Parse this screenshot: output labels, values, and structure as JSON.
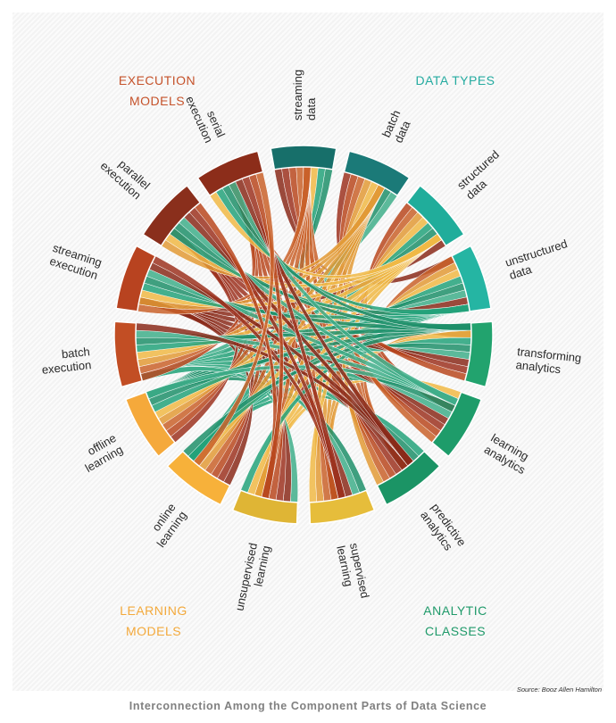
{
  "groups": {
    "execution": {
      "line1": "EXECUTION",
      "line2": "MODELS",
      "color": "#c5522a"
    },
    "data_types": {
      "line1": "DATA TYPES",
      "line2": "",
      "color": "#24aba0"
    },
    "learning": {
      "line1": "LEARNING",
      "line2": "MODELS",
      "color": "#f3a93b"
    },
    "analytic": {
      "line1": "ANALYTIC",
      "line2": "CLASSES",
      "color": "#1f9a6a"
    }
  },
  "segments": [
    {
      "id": "streaming-data",
      "lines": [
        "streaming",
        "data"
      ],
      "color": "#176f6a",
      "group": "data_types"
    },
    {
      "id": "batch-data",
      "lines": [
        "batch",
        "data"
      ],
      "color": "#1b7a78",
      "group": "data_types"
    },
    {
      "id": "structured-data",
      "lines": [
        "structured",
        "data"
      ],
      "color": "#20ad9b",
      "group": "data_types"
    },
    {
      "id": "unstructured-data",
      "lines": [
        "unstructured",
        "data"
      ],
      "color": "#25b5a3",
      "group": "data_types"
    },
    {
      "id": "transforming-analytics",
      "lines": [
        "transforming",
        "analytics"
      ],
      "color": "#22a36e",
      "group": "analytic"
    },
    {
      "id": "learning-analytics",
      "lines": [
        "learning",
        "analytics"
      ],
      "color": "#1e9c6a",
      "group": "analytic"
    },
    {
      "id": "predictive-analytics",
      "lines": [
        "predictive",
        "analytics"
      ],
      "color": "#1b9465",
      "group": "analytic"
    },
    {
      "id": "supervised-learning",
      "lines": [
        "supervised",
        "learning"
      ],
      "color": "#e6bd3b",
      "group": "learning"
    },
    {
      "id": "unsupervised-learning",
      "lines": [
        "unsupervised",
        "learning"
      ],
      "color": "#dfb535",
      "group": "learning"
    },
    {
      "id": "online-learning",
      "lines": [
        "online",
        "learning"
      ],
      "color": "#f7b13a",
      "group": "learning"
    },
    {
      "id": "offline-learning",
      "lines": [
        "offline",
        "learning"
      ],
      "color": "#f5a93b",
      "group": "learning"
    },
    {
      "id": "batch-execution",
      "lines": [
        "batch",
        "execution"
      ],
      "color": "#c24e24",
      "group": "execution"
    },
    {
      "id": "streaming-execution",
      "lines": [
        "streaming",
        "execution"
      ],
      "color": "#b84320",
      "group": "execution"
    },
    {
      "id": "parallel-execution",
      "lines": [
        "parallel",
        "execution"
      ],
      "color": "#8a2f1c",
      "group": "execution"
    },
    {
      "id": "serial-execution",
      "lines": [
        "serial",
        "execution"
      ],
      "color": "#8c2d1a",
      "group": "execution"
    }
  ],
  "source_note": "Source: Booz Allen Hamilton",
  "footer": "Interconnection Among the Component Parts of Data Science"
}
